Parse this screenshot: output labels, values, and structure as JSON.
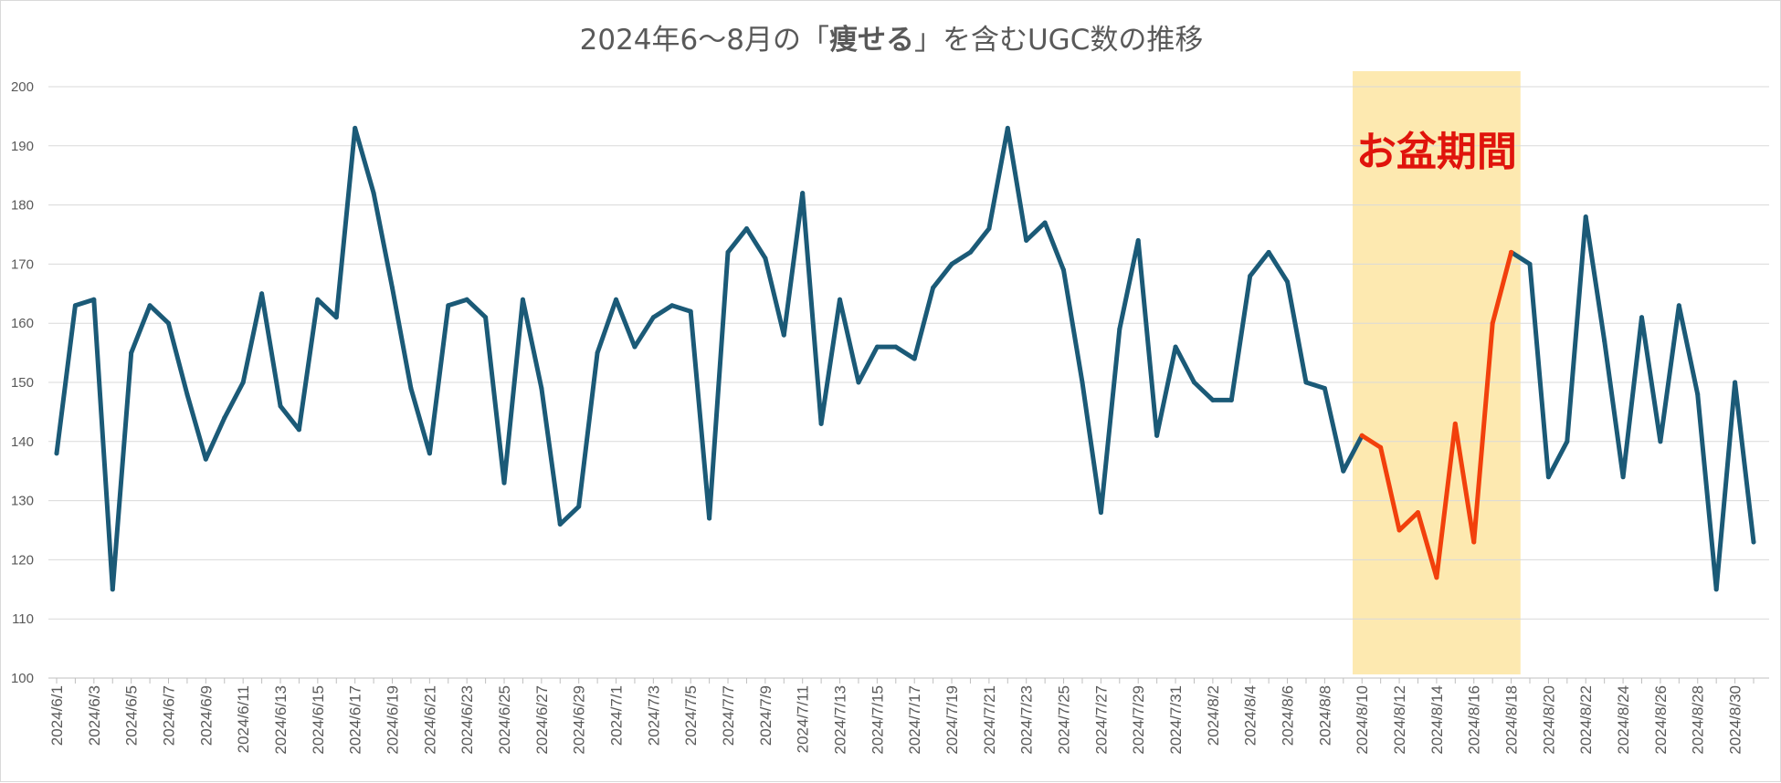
{
  "chart_data": {
    "type": "line",
    "title_parts": [
      {
        "text": "2024年6〜8月の「",
        "bold": false
      },
      {
        "text": "痩せる",
        "bold": true
      },
      {
        "text": "」を含むUGC数の推移",
        "bold": false
      }
    ],
    "ylim": [
      100,
      200
    ],
    "yticks": [
      100,
      110,
      120,
      130,
      140,
      150,
      160,
      170,
      180,
      190,
      200
    ],
    "grid": true,
    "x": [
      "2024/6/1",
      "2024/6/2",
      "2024/6/3",
      "2024/6/4",
      "2024/6/5",
      "2024/6/6",
      "2024/6/7",
      "2024/6/8",
      "2024/6/9",
      "2024/6/10",
      "2024/6/11",
      "2024/6/12",
      "2024/6/13",
      "2024/6/14",
      "2024/6/15",
      "2024/6/16",
      "2024/6/17",
      "2024/6/18",
      "2024/6/19",
      "2024/6/20",
      "2024/6/21",
      "2024/6/22",
      "2024/6/23",
      "2024/6/24",
      "2024/6/25",
      "2024/6/26",
      "2024/6/27",
      "2024/6/28",
      "2024/6/29",
      "2024/6/30",
      "2024/7/1",
      "2024/7/2",
      "2024/7/3",
      "2024/7/4",
      "2024/7/5",
      "2024/7/6",
      "2024/7/7",
      "2024/7/8",
      "2024/7/9",
      "2024/7/10",
      "2024/7/11",
      "2024/7/12",
      "2024/7/13",
      "2024/7/14",
      "2024/7/15",
      "2024/7/16",
      "2024/7/17",
      "2024/7/18",
      "2024/7/19",
      "2024/7/20",
      "2024/7/21",
      "2024/7/22",
      "2024/7/23",
      "2024/7/24",
      "2024/7/25",
      "2024/7/26",
      "2024/7/27",
      "2024/7/28",
      "2024/7/29",
      "2024/7/30",
      "2024/7/31",
      "2024/8/1",
      "2024/8/2",
      "2024/8/3",
      "2024/8/4",
      "2024/8/5",
      "2024/8/6",
      "2024/8/7",
      "2024/8/8",
      "2024/8/9",
      "2024/8/10",
      "2024/8/11",
      "2024/8/12",
      "2024/8/13",
      "2024/8/14",
      "2024/8/15",
      "2024/8/16",
      "2024/8/17",
      "2024/8/18",
      "2024/8/19",
      "2024/8/20",
      "2024/8/21",
      "2024/8/22",
      "2024/8/23",
      "2024/8/24",
      "2024/8/25",
      "2024/8/26",
      "2024/8/27",
      "2024/8/28",
      "2024/8/29",
      "2024/8/30",
      "2024/8/31"
    ],
    "xtick_labels": [
      "2024/6/1",
      "2024/6/3",
      "2024/6/5",
      "2024/6/7",
      "2024/6/9",
      "2024/6/11",
      "2024/6/13",
      "2024/6/15",
      "2024/6/17",
      "2024/6/19",
      "2024/6/21",
      "2024/6/23",
      "2024/6/25",
      "2024/6/27",
      "2024/6/29",
      "2024/7/1",
      "2024/7/3",
      "2024/7/5",
      "2024/7/7",
      "2024/7/9",
      "2024/7/11",
      "2024/7/13",
      "2024/7/15",
      "2024/7/17",
      "2024/7/19",
      "2024/7/21",
      "2024/7/23",
      "2024/7/25",
      "2024/7/27",
      "2024/7/29",
      "2024/7/31",
      "2024/8/2",
      "2024/8/4",
      "2024/8/6",
      "2024/8/8",
      "2024/8/10",
      "2024/8/12",
      "2024/8/14",
      "2024/8/16",
      "2024/8/18",
      "2024/8/20",
      "2024/8/22",
      "2024/8/24",
      "2024/8/26",
      "2024/8/28",
      "2024/8/30"
    ],
    "values": [
      138,
      163,
      164,
      115,
      155,
      163,
      160,
      148,
      137,
      144,
      150,
      165,
      146,
      142,
      164,
      161,
      193,
      182,
      166,
      149,
      138,
      163,
      164,
      161,
      133,
      164,
      149,
      126,
      129,
      155,
      164,
      156,
      161,
      163,
      162,
      127,
      172,
      176,
      171,
      158,
      182,
      143,
      164,
      150,
      156,
      156,
      154,
      166,
      170,
      172,
      176,
      193,
      174,
      177,
      169,
      150,
      128,
      159,
      174,
      141,
      156,
      150,
      147,
      147,
      168,
      172,
      167,
      150,
      149,
      135,
      141,
      139,
      125,
      128,
      117,
      143,
      123,
      160,
      172,
      170,
      134,
      140,
      178,
      157,
      134,
      161,
      140,
      163,
      148,
      115,
      150,
      123
    ],
    "highlight": {
      "label": "お盆期間",
      "from": "2024/8/10",
      "to": "2024/8/18"
    },
    "colors": {
      "line": "#1b5a77",
      "highlight_line": "#f2400c",
      "band": "#fde9b0",
      "annotation": "#e0140c"
    }
  }
}
